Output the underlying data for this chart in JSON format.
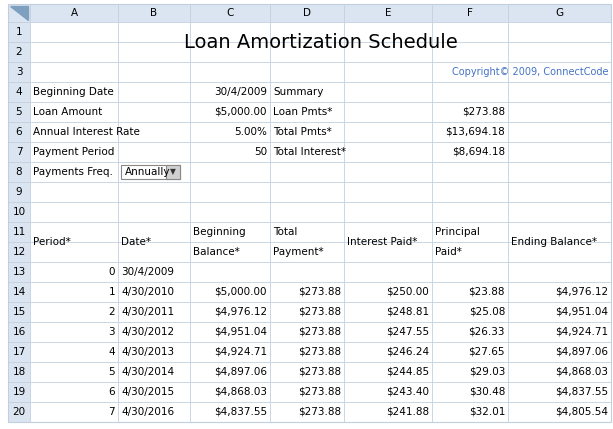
{
  "title": "Loan Amortization Schedule",
  "copyright": "Copyright© 2009, ConnectCode",
  "table_headers": [
    "Period*",
    "Date*",
    "Beginning\nBalance*",
    "Total\nPayment*",
    "Interest Paid*",
    "Principal\nPaid*",
    "Ending Balance*"
  ],
  "data_rows": [
    [
      "0",
      "30/4/2009",
      "",
      "",
      "",
      "",
      ""
    ],
    [
      "1",
      "4/30/2010",
      "$5,000.00",
      "$273.88",
      "$250.00",
      "$23.88",
      "$4,976.12"
    ],
    [
      "2",
      "4/30/2011",
      "$4,976.12",
      "$273.88",
      "$248.81",
      "$25.08",
      "$4,951.04"
    ],
    [
      "3",
      "4/30/2012",
      "$4,951.04",
      "$273.88",
      "$247.55",
      "$26.33",
      "$4,924.71"
    ],
    [
      "4",
      "4/30/2013",
      "$4,924.71",
      "$273.88",
      "$246.24",
      "$27.65",
      "$4,897.06"
    ],
    [
      "5",
      "4/30/2014",
      "$4,897.06",
      "$273.88",
      "$244.85",
      "$29.03",
      "$4,868.03"
    ],
    [
      "6",
      "4/30/2015",
      "$4,868.03",
      "$273.88",
      "$243.40",
      "$30.48",
      "$4,837.55"
    ],
    [
      "7",
      "4/30/2016",
      "$4,837.55",
      "$273.88",
      "$241.88",
      "$32.01",
      "$4,805.54"
    ]
  ],
  "bg_color": "#FFFFFF",
  "grid_color": "#C0CEDE",
  "title_color": "#000000",
  "copyright_color": "#4472C4",
  "text_color": "#000000",
  "row_header_bg": "#DBE5F1",
  "col_header_bg": "#DBE5F1",
  "cell_bg": "#FFFFFF",
  "title_fontsize": 14,
  "body_fontsize": 7.5,
  "col_header_fontsize": 7.5
}
